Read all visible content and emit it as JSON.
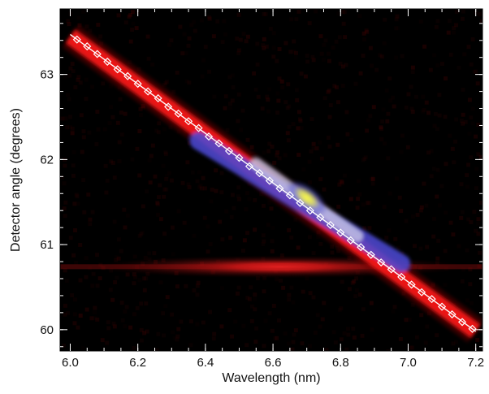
{
  "chart_data": {
    "type": "heatmap",
    "title": "",
    "xlabel": "Wavelength (nm)",
    "ylabel": "Detector angle (degrees)",
    "xlim": [
      5.97,
      7.22
    ],
    "ylim": [
      59.75,
      63.77
    ],
    "x_ticks": [
      {
        "value": 6.0,
        "label": "6.0"
      },
      {
        "value": 6.2,
        "label": "6.2"
      },
      {
        "value": 6.4,
        "label": "6.4"
      },
      {
        "value": 6.6,
        "label": "6.6"
      },
      {
        "value": 6.8,
        "label": "6.8"
      },
      {
        "value": 7.0,
        "label": "7.0"
      },
      {
        "value": 7.2,
        "label": "7.2"
      }
    ],
    "x_minor_step": 0.05,
    "y_ticks": [
      {
        "value": 60,
        "label": "60"
      },
      {
        "value": 61,
        "label": "61"
      },
      {
        "value": 62,
        "label": "62"
      },
      {
        "value": 63,
        "label": "63"
      }
    ],
    "y_minor_step": 0.2,
    "colormap": [
      "#000000",
      "#ff1a1a",
      "#4a4ad8",
      "#ffff33"
    ],
    "band": {
      "description_free": true,
      "start": [
        6.0,
        63.45
      ],
      "end": [
        7.2,
        59.98
      ],
      "peak_center": [
        6.7,
        61.55
      ]
    },
    "horizontal_feature": {
      "y": 60.74,
      "x_center": 6.62
    },
    "series": [
      {
        "type": "line",
        "color": "#ffffff",
        "x": [
          6.0,
          7.2
        ],
        "y": [
          63.47,
          59.98
        ]
      },
      {
        "type": "scatter",
        "marker": "diamond",
        "color": "#ffffff",
        "x": [
          6.02,
          6.05,
          6.08,
          6.11,
          6.14,
          6.17,
          6.2,
          6.23,
          6.26,
          6.29,
          6.32,
          6.35,
          6.38,
          6.41,
          6.44,
          6.47,
          6.5,
          6.53,
          6.56,
          6.59,
          6.62,
          6.65,
          6.68,
          6.71,
          6.74,
          6.77,
          6.8,
          6.83,
          6.86,
          6.89,
          6.92,
          6.95,
          6.98,
          7.01,
          7.04,
          7.07,
          7.1,
          7.13,
          7.16,
          7.19
        ],
        "y": [
          63.41,
          63.33,
          63.24,
          63.15,
          63.06,
          62.98,
          62.89,
          62.8,
          62.72,
          62.62,
          62.54,
          62.45,
          62.37,
          62.27,
          62.19,
          62.1,
          62.02,
          61.92,
          61.84,
          61.75,
          61.66,
          61.58,
          61.49,
          61.4,
          61.32,
          61.23,
          61.14,
          61.05,
          60.97,
          60.88,
          60.79,
          60.71,
          60.62,
          60.53,
          60.44,
          60.36,
          60.27,
          60.18,
          60.09,
          60.01
        ]
      }
    ]
  }
}
